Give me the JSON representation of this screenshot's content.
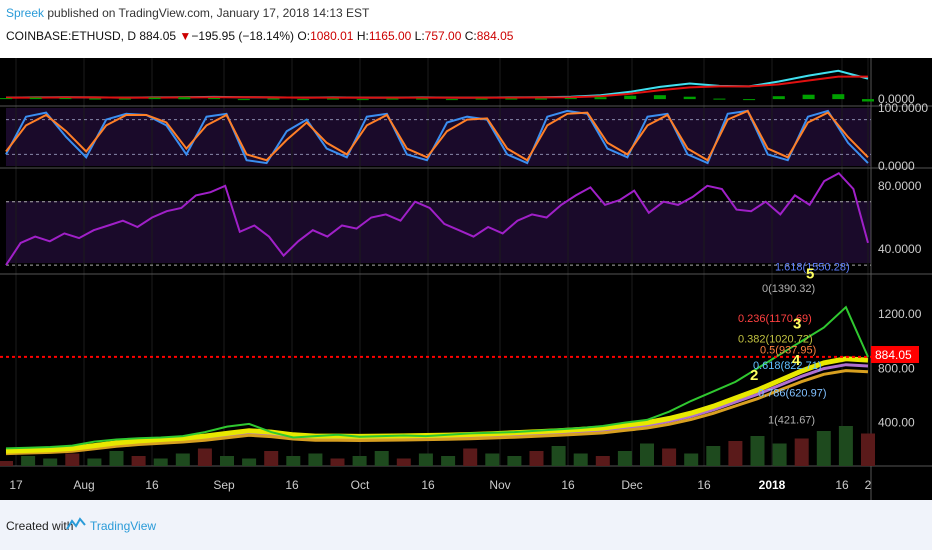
{
  "header": {
    "author": "Spreek",
    "published_text": " published on TradingView.com, January 17, 2018 14:13 EST",
    "symbol": "COINBASE:ETHUSD, D",
    "last": "884.05",
    "down_arrow": "▼",
    "change": "−195.95 (−18.14%)",
    "o_label": "O:",
    "o_value": "1080.01",
    "h_label": "H:",
    "h_value": "1165.00",
    "l_label": "L:",
    "l_value": "757.00",
    "c_label": "C:",
    "c_value": "884.05"
  },
  "footer": {
    "created_with": "Created with",
    "brand": "TradingView",
    "logo_icon": "tradingview-logo-icon"
  },
  "colors": {
    "background": "#000000",
    "price_line": "#ff0000",
    "price_label_bg": "#ff0000",
    "rsi": "#a020c8",
    "stoch_k": "#3b8ef0",
    "stoch_d": "#ff7f27",
    "macd_fast": "#40e0f0",
    "macd_slow": "#e01010",
    "histogram": "#00a000",
    "ma_yellow": "#e8e800",
    "fib_text": "#b0b0b0"
  },
  "chart_data": [
    {
      "type": "line",
      "panel": "macd",
      "axis_labels": [
        "0.0000"
      ],
      "ylim": [
        -1,
        8
      ],
      "series": [
        {
          "values": [
            0.3,
            0.35,
            0.4,
            0.35,
            0.3,
            0.35,
            0.4,
            0.45,
            0.4,
            0.35,
            0.3,
            0.35,
            0.3,
            0.3,
            0.35,
            0.3,
            0.3,
            0.35,
            0.4,
            0.5,
            0.8,
            1.5,
            2.5,
            3.2,
            2.7,
            2.6,
            3.6,
            4.8,
            5.8,
            4.2
          ]
        },
        {
          "values": [
            0.3,
            0.3,
            0.35,
            0.35,
            0.3,
            0.3,
            0.35,
            0.4,
            0.4,
            0.35,
            0.3,
            0.3,
            0.3,
            0.3,
            0.3,
            0.3,
            0.3,
            0.3,
            0.35,
            0.4,
            0.6,
            1.1,
            1.8,
            2.4,
            2.6,
            2.6,
            3.0,
            3.8,
            4.6,
            4.6
          ]
        },
        {
          "values": [
            0.2,
            0.3,
            0.2,
            0.1,
            0.1,
            0.3,
            0.4,
            0.2,
            -0.1,
            0.1,
            0.0,
            0.1,
            0.0,
            0.1,
            0.1,
            0.0,
            0.1,
            0.1,
            0.1,
            0.2,
            0.4,
            0.7,
            0.8,
            0.5,
            0.1,
            0.0,
            0.6,
            0.9,
            1.0,
            -0.5
          ]
        }
      ]
    },
    {
      "type": "line",
      "panel": "stochastic",
      "axis_labels": [
        "100.0000",
        "0.0000"
      ],
      "ylim": [
        0,
        100
      ],
      "series": [
        {
          "values": [
            20,
            85,
            92,
            50,
            15,
            80,
            90,
            88,
            70,
            20,
            85,
            90,
            10,
            5,
            60,
            80,
            30,
            15,
            85,
            90,
            20,
            10,
            75,
            85,
            80,
            20,
            5,
            85,
            95,
            90,
            30,
            15,
            85,
            90,
            20,
            5,
            90,
            95,
            20,
            10,
            85,
            95,
            40,
            5
          ]
        },
        {
          "values": [
            25,
            70,
            88,
            60,
            25,
            70,
            88,
            88,
            75,
            30,
            70,
            88,
            20,
            10,
            45,
            75,
            40,
            20,
            70,
            88,
            30,
            15,
            60,
            80,
            82,
            30,
            10,
            70,
            90,
            92,
            40,
            20,
            70,
            88,
            30,
            10,
            80,
            95,
            30,
            15,
            75,
            92,
            50,
            15
          ]
        }
      ]
    },
    {
      "type": "line",
      "panel": "rsi",
      "axis_labels": [
        "80.0000",
        "40.0000"
      ],
      "ylim": [
        25,
        90
      ],
      "series": [
        {
          "values": [
            30,
            44,
            48,
            45,
            50,
            47,
            52,
            55,
            58,
            54,
            60,
            64,
            66,
            74,
            76,
            80,
            51,
            55,
            48,
            36,
            45,
            52,
            48,
            55,
            53,
            60,
            62,
            58,
            70,
            66,
            56,
            52,
            48,
            54,
            50,
            58,
            62,
            60,
            68,
            74,
            79,
            68,
            71,
            77,
            63,
            70,
            68,
            73,
            80,
            78,
            65,
            64,
            70,
            62,
            74,
            68,
            83,
            88,
            78,
            44
          ]
        }
      ]
    },
    {
      "type": "line",
      "panel": "price",
      "axis_labels": [
        "1200.00",
        "800.00",
        "400.00"
      ],
      "last_price_label": "884.05",
      "ylim": [
        80,
        1480
      ],
      "series": [
        {
          "values": [
            210,
            215,
            220,
            230,
            260,
            275,
            285,
            290,
            300,
            330,
            370,
            390,
            330,
            290,
            300,
            310,
            295,
            300,
            305,
            300,
            310,
            320,
            325,
            330,
            340,
            350,
            360,
            375,
            400,
            420,
            480,
            560,
            630,
            700,
            800,
            900,
            1000,
            1100,
            1250,
            884
          ]
        },
        {
          "values": [
            190,
            195,
            200,
            210,
            230,
            250,
            265,
            275,
            285,
            300,
            320,
            340,
            330,
            310,
            300,
            300,
            298,
            300,
            302,
            305,
            308,
            312,
            318,
            325,
            332,
            340,
            350,
            360,
            380,
            400,
            430,
            470,
            520,
            580,
            640,
            710,
            780,
            840,
            870,
            860
          ]
        }
      ]
    },
    {
      "type": "bar",
      "panel": "volume",
      "series": [
        {
          "values": [
            2,
            4,
            3,
            5,
            3,
            6,
            4,
            3,
            5,
            7,
            4,
            3,
            6,
            4,
            5,
            3,
            4,
            6,
            3,
            5,
            4,
            7,
            5,
            4,
            6,
            8,
            5,
            4,
            6,
            9,
            7,
            5,
            8,
            10,
            12,
            9,
            11,
            14,
            16,
            13
          ]
        }
      ]
    },
    {
      "type": "text",
      "panel": "fibonacci",
      "labels": [
        "1.618(1550.28)",
        "0(1390.32)",
        "0.236(1170.69)",
        "0.382(1020.72)",
        "0.5(937.95)",
        "0.618(822.71)",
        "0.786(620.97)",
        "1(421.67)"
      ],
      "waves": [
        "5",
        "3",
        "4",
        "2"
      ]
    },
    {
      "type": "axis",
      "panel": "time",
      "ticks": [
        "17",
        "Aug",
        "16",
        "Sep",
        "16",
        "Oct",
        "16",
        "Nov",
        "16",
        "Dec",
        "16",
        "2018",
        "16",
        "2"
      ]
    }
  ]
}
